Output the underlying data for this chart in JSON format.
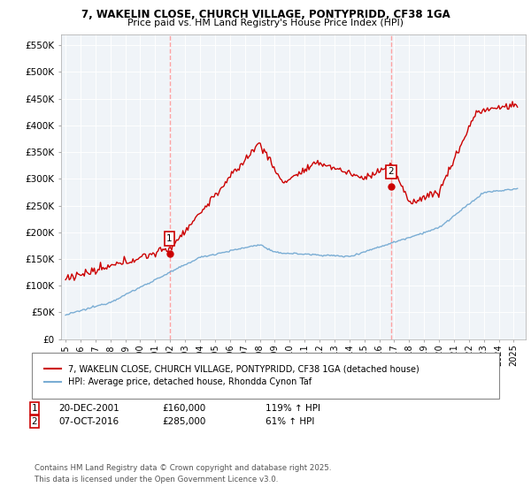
{
  "title_line1": "7, WAKELIN CLOSE, CHURCH VILLAGE, PONTYPRIDD, CF38 1GA",
  "title_line2": "Price paid vs. HM Land Registry's House Price Index (HPI)",
  "legend_label1": "7, WAKELIN CLOSE, CHURCH VILLAGE, PONTYPRIDD, CF38 1GA (detached house)",
  "legend_label2": "HPI: Average price, detached house, Rhondda Cynon Taf",
  "annotation1_date": "20-DEC-2001",
  "annotation1_price": "£160,000",
  "annotation1_hpi": "119% ↑ HPI",
  "annotation2_date": "07-OCT-2016",
  "annotation2_price": "£285,000",
  "annotation2_hpi": "61% ↑ HPI",
  "footnote_line1": "Contains HM Land Registry data © Crown copyright and database right 2025.",
  "footnote_line2": "This data is licensed under the Open Government Licence v3.0.",
  "price_color": "#cc0000",
  "hpi_color": "#7aadd4",
  "vline_color": "#ff9999",
  "bg_color": "#f0f4f8",
  "ylim": [
    0,
    570000
  ],
  "yticks": [
    0,
    50000,
    100000,
    150000,
    200000,
    250000,
    300000,
    350000,
    400000,
    450000,
    500000,
    550000
  ],
  "ytick_labels": [
    "£0",
    "£50K",
    "£100K",
    "£150K",
    "£200K",
    "£250K",
    "£300K",
    "£350K",
    "£400K",
    "£450K",
    "£500K",
    "£550K"
  ],
  "sale1_year": 2001.958,
  "sale1_price": 160000,
  "sale2_year": 2016.792,
  "sale2_price": 285000
}
